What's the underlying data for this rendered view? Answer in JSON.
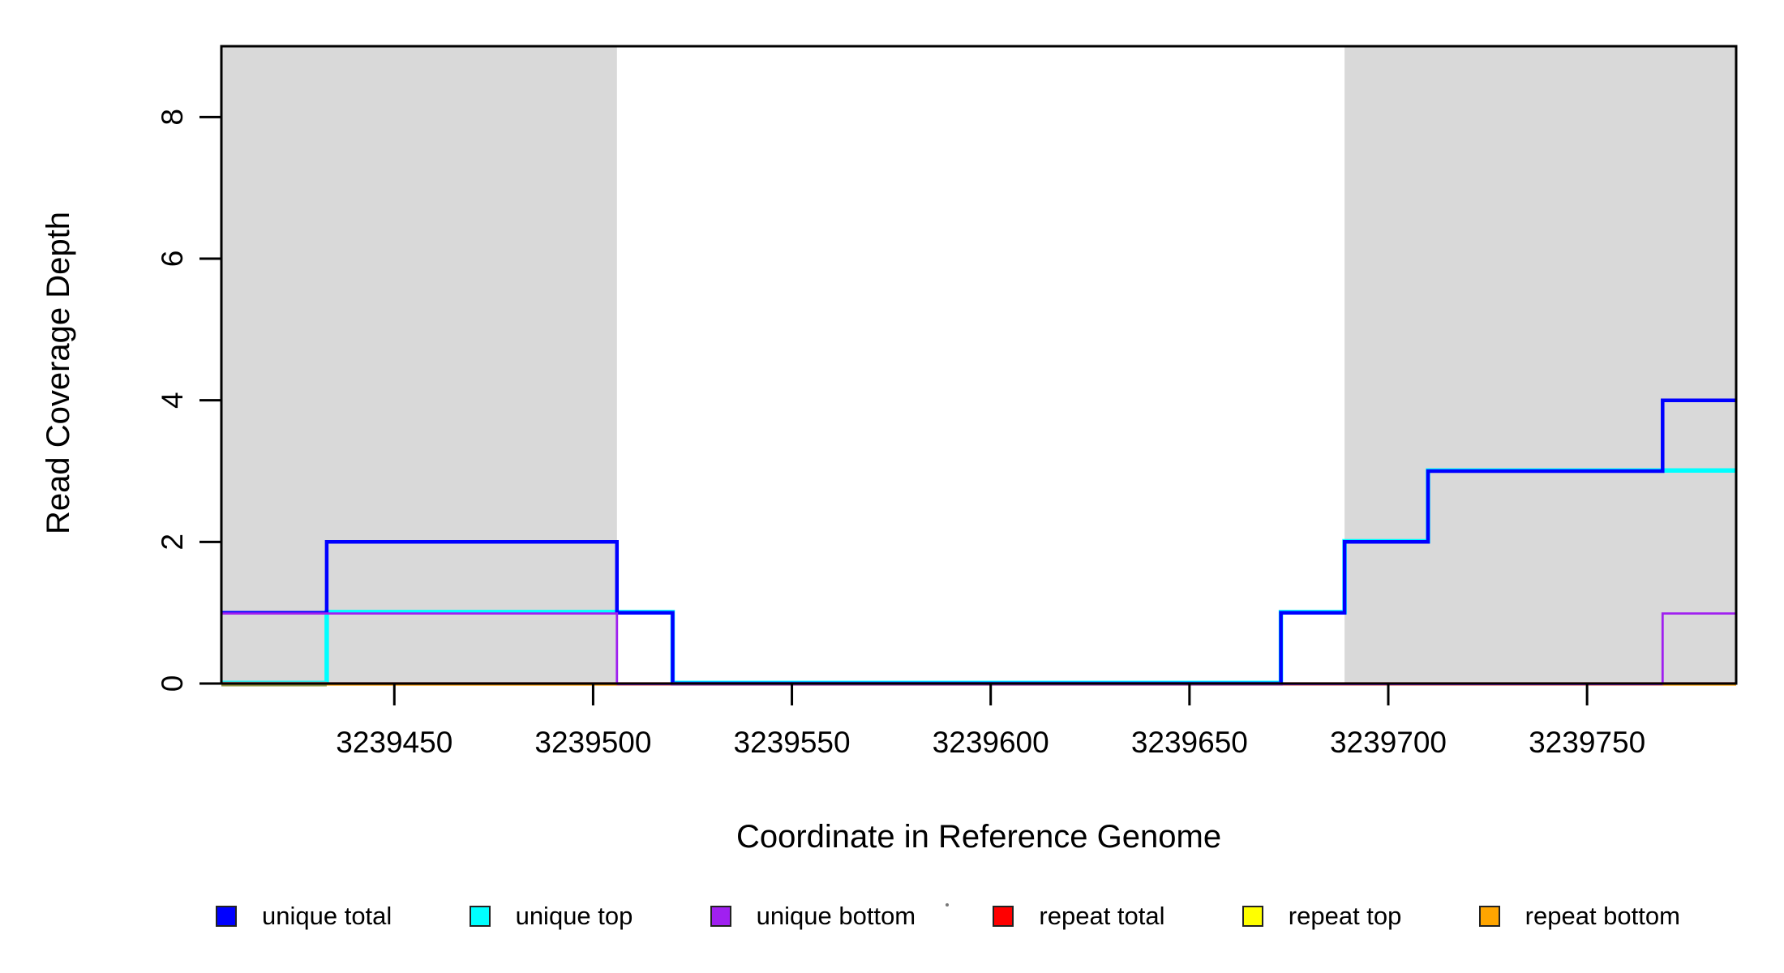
{
  "chart_data": {
    "type": "line",
    "subtype": "step-coverage-plot",
    "title": "",
    "xlabel": "Coordinate in Reference Genome",
    "ylabel": "Read Coverage Depth",
    "x_domain": [
      3239406.5,
      3239787.5
    ],
    "y_domain": [
      0,
      9
    ],
    "grid": false,
    "legend_position": "bottom",
    "x_ticks": [
      3239450,
      3239500,
      3239550,
      3239600,
      3239650,
      3239700,
      3239750
    ],
    "x_tick_labels": [
      "3239450",
      "3239500",
      "3239550",
      "3239600",
      "3239650",
      "3239700",
      "3239750"
    ],
    "y_ticks": [
      0,
      2,
      4,
      6,
      8
    ],
    "y_tick_labels": [
      "0",
      "2",
      "4",
      "6",
      "8"
    ],
    "shaded_regions": [
      {
        "name": "left-gray-band",
        "from": 3239406.5,
        "to": 3239506,
        "color": "#d9d9d9"
      },
      {
        "name": "right-gray-band",
        "from": 3239689,
        "to": 3239787.5,
        "color": "#d9d9d9"
      }
    ],
    "series": [
      {
        "name": "unique top",
        "color": "#00ffff",
        "width": 5.5,
        "dy": -0.8,
        "points": [
          [
            3239406.5,
            0
          ],
          [
            3239433,
            0
          ],
          [
            3239433,
            1
          ],
          [
            3239520,
            1
          ],
          [
            3239520,
            0
          ],
          [
            3239673,
            0
          ],
          [
            3239673,
            1
          ],
          [
            3239689,
            1
          ],
          [
            3239689,
            2
          ],
          [
            3239710,
            2
          ],
          [
            3239710,
            3
          ],
          [
            3239787.5,
            3
          ]
        ]
      },
      {
        "name": "repeat total",
        "color": "#ff0000",
        "width": 2.2,
        "dy": -0.5,
        "points": [
          [
            3239406.5,
            0
          ],
          [
            3239787.5,
            0
          ]
        ]
      },
      {
        "name": "repeat top",
        "color": "#ffff00",
        "width": 2.2,
        "dy": 0.5,
        "points": [
          [
            3239406.5,
            0
          ],
          [
            3239787.5,
            0
          ]
        ]
      },
      {
        "name": "repeat bottom",
        "color": "#ffa500",
        "width": 2.2,
        "dy": 1.5,
        "points": [
          [
            3239406.5,
            0
          ],
          [
            3239787.5,
            0
          ]
        ]
      },
      {
        "name": "unique total",
        "color": "#0000ff",
        "width": 4.5,
        "dy": 0,
        "points": [
          [
            3239406.5,
            1
          ],
          [
            3239433,
            1
          ],
          [
            3239433,
            2
          ],
          [
            3239506,
            2
          ],
          [
            3239506,
            1
          ],
          [
            3239520,
            1
          ],
          [
            3239520,
            0
          ],
          [
            3239673,
            0
          ],
          [
            3239673,
            1
          ],
          [
            3239689,
            1
          ],
          [
            3239689,
            2
          ],
          [
            3239710,
            2
          ],
          [
            3239710,
            3
          ],
          [
            3239769,
            3
          ],
          [
            3239769,
            4
          ],
          [
            3239787.5,
            4
          ]
        ]
      },
      {
        "name": "unique bottom",
        "color": "#a020f0",
        "width": 2.8,
        "dy": 0.9,
        "points": [
          [
            3239406.5,
            1
          ],
          [
            3239506,
            1
          ],
          [
            3239506,
            0
          ],
          [
            3239769,
            0
          ],
          [
            3239769,
            1
          ],
          [
            3239787.5,
            1
          ]
        ]
      }
    ],
    "baseline_overlap_segments": [
      {
        "from": 3239406.5,
        "to": 3239433,
        "color": "#d98b85",
        "width": 2.6,
        "dy": -1.0
      },
      {
        "from": 3239406.5,
        "to": 3239433,
        "color": "#8f9140",
        "width": 2.6,
        "dy": 2.2
      },
      {
        "from": 3239433,
        "to": 3239506,
        "color": "#f28900",
        "width": 3.2,
        "dy": 0.6
      },
      {
        "from": 3239506,
        "to": 3239520,
        "color": "#e8837f",
        "width": 3.0,
        "dy": 0
      },
      {
        "from": 3239520,
        "to": 3239673,
        "color": "#7466d6",
        "width": 3.4,
        "dy": 0
      },
      {
        "from": 3239673,
        "to": 3239769,
        "color": "#d98b85",
        "width": 3.0,
        "dy": 0
      },
      {
        "from": 3239769,
        "to": 3239787.5,
        "color": "#f59300",
        "width": 3.4,
        "dy": 0.6
      }
    ],
    "legend": [
      {
        "label": "unique total",
        "color": "#0000ff"
      },
      {
        "label": "unique top",
        "color": "#00ffff"
      },
      {
        "label": "unique bottom",
        "color": "#a020f0"
      },
      {
        "label": "repeat total",
        "color": "#ff0000"
      },
      {
        "label": "repeat top",
        "color": "#ffff00"
      },
      {
        "label": "repeat bottom",
        "color": "#ffa500"
      }
    ]
  }
}
